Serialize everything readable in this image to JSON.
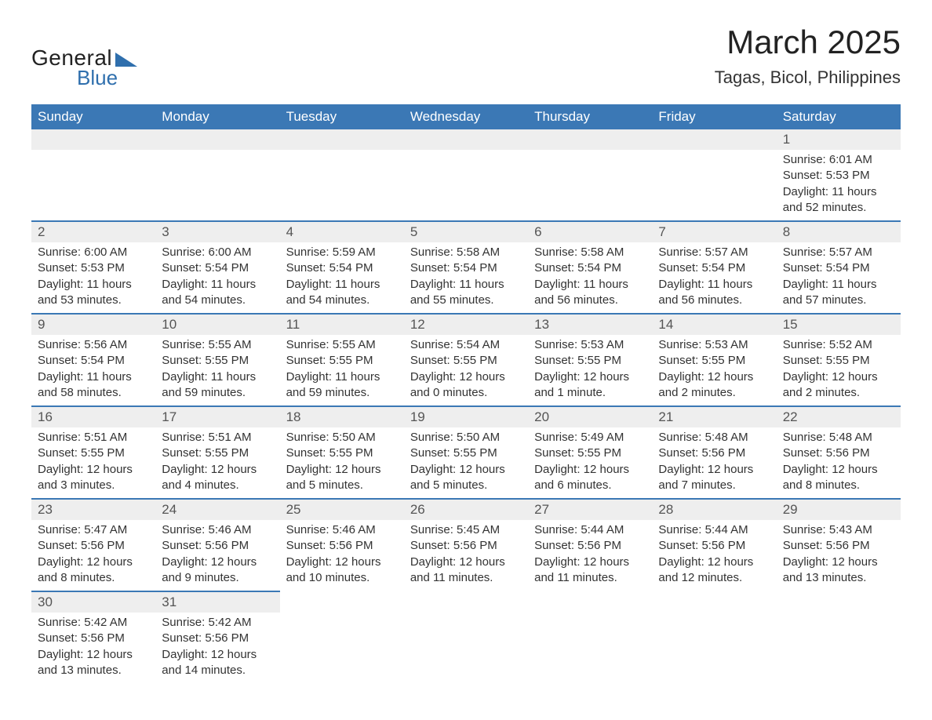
{
  "logo": {
    "text1": "General",
    "text2": "Blue",
    "text_color": "#222222",
    "accent_color": "#2f6fad"
  },
  "title": "March 2025",
  "location": "Tagas, Bicol, Philippines",
  "styling": {
    "header_bg": "#3b78b5",
    "header_text": "#ffffff",
    "daynum_bg": "#eeeeee",
    "row_divider": "#3b78b5",
    "body_text": "#333333",
    "title_fontsize": 42,
    "location_fontsize": 22,
    "th_fontsize": 17,
    "cell_fontsize": 15
  },
  "weekdays": [
    "Sunday",
    "Monday",
    "Tuesday",
    "Wednesday",
    "Thursday",
    "Friday",
    "Saturday"
  ],
  "weeks": [
    [
      null,
      null,
      null,
      null,
      null,
      null,
      {
        "n": "1",
        "sr": "Sunrise: 6:01 AM",
        "ss": "Sunset: 5:53 PM",
        "dl": "Daylight: 11 hours and 52 minutes."
      }
    ],
    [
      {
        "n": "2",
        "sr": "Sunrise: 6:00 AM",
        "ss": "Sunset: 5:53 PM",
        "dl": "Daylight: 11 hours and 53 minutes."
      },
      {
        "n": "3",
        "sr": "Sunrise: 6:00 AM",
        "ss": "Sunset: 5:54 PM",
        "dl": "Daylight: 11 hours and 54 minutes."
      },
      {
        "n": "4",
        "sr": "Sunrise: 5:59 AM",
        "ss": "Sunset: 5:54 PM",
        "dl": "Daylight: 11 hours and 54 minutes."
      },
      {
        "n": "5",
        "sr": "Sunrise: 5:58 AM",
        "ss": "Sunset: 5:54 PM",
        "dl": "Daylight: 11 hours and 55 minutes."
      },
      {
        "n": "6",
        "sr": "Sunrise: 5:58 AM",
        "ss": "Sunset: 5:54 PM",
        "dl": "Daylight: 11 hours and 56 minutes."
      },
      {
        "n": "7",
        "sr": "Sunrise: 5:57 AM",
        "ss": "Sunset: 5:54 PM",
        "dl": "Daylight: 11 hours and 56 minutes."
      },
      {
        "n": "8",
        "sr": "Sunrise: 5:57 AM",
        "ss": "Sunset: 5:54 PM",
        "dl": "Daylight: 11 hours and 57 minutes."
      }
    ],
    [
      {
        "n": "9",
        "sr": "Sunrise: 5:56 AM",
        "ss": "Sunset: 5:54 PM",
        "dl": "Daylight: 11 hours and 58 minutes."
      },
      {
        "n": "10",
        "sr": "Sunrise: 5:55 AM",
        "ss": "Sunset: 5:55 PM",
        "dl": "Daylight: 11 hours and 59 minutes."
      },
      {
        "n": "11",
        "sr": "Sunrise: 5:55 AM",
        "ss": "Sunset: 5:55 PM",
        "dl": "Daylight: 11 hours and 59 minutes."
      },
      {
        "n": "12",
        "sr": "Sunrise: 5:54 AM",
        "ss": "Sunset: 5:55 PM",
        "dl": "Daylight: 12 hours and 0 minutes."
      },
      {
        "n": "13",
        "sr": "Sunrise: 5:53 AM",
        "ss": "Sunset: 5:55 PM",
        "dl": "Daylight: 12 hours and 1 minute."
      },
      {
        "n": "14",
        "sr": "Sunrise: 5:53 AM",
        "ss": "Sunset: 5:55 PM",
        "dl": "Daylight: 12 hours and 2 minutes."
      },
      {
        "n": "15",
        "sr": "Sunrise: 5:52 AM",
        "ss": "Sunset: 5:55 PM",
        "dl": "Daylight: 12 hours and 2 minutes."
      }
    ],
    [
      {
        "n": "16",
        "sr": "Sunrise: 5:51 AM",
        "ss": "Sunset: 5:55 PM",
        "dl": "Daylight: 12 hours and 3 minutes."
      },
      {
        "n": "17",
        "sr": "Sunrise: 5:51 AM",
        "ss": "Sunset: 5:55 PM",
        "dl": "Daylight: 12 hours and 4 minutes."
      },
      {
        "n": "18",
        "sr": "Sunrise: 5:50 AM",
        "ss": "Sunset: 5:55 PM",
        "dl": "Daylight: 12 hours and 5 minutes."
      },
      {
        "n": "19",
        "sr": "Sunrise: 5:50 AM",
        "ss": "Sunset: 5:55 PM",
        "dl": "Daylight: 12 hours and 5 minutes."
      },
      {
        "n": "20",
        "sr": "Sunrise: 5:49 AM",
        "ss": "Sunset: 5:55 PM",
        "dl": "Daylight: 12 hours and 6 minutes."
      },
      {
        "n": "21",
        "sr": "Sunrise: 5:48 AM",
        "ss": "Sunset: 5:56 PM",
        "dl": "Daylight: 12 hours and 7 minutes."
      },
      {
        "n": "22",
        "sr": "Sunrise: 5:48 AM",
        "ss": "Sunset: 5:56 PM",
        "dl": "Daylight: 12 hours and 8 minutes."
      }
    ],
    [
      {
        "n": "23",
        "sr": "Sunrise: 5:47 AM",
        "ss": "Sunset: 5:56 PM",
        "dl": "Daylight: 12 hours and 8 minutes."
      },
      {
        "n": "24",
        "sr": "Sunrise: 5:46 AM",
        "ss": "Sunset: 5:56 PM",
        "dl": "Daylight: 12 hours and 9 minutes."
      },
      {
        "n": "25",
        "sr": "Sunrise: 5:46 AM",
        "ss": "Sunset: 5:56 PM",
        "dl": "Daylight: 12 hours and 10 minutes."
      },
      {
        "n": "26",
        "sr": "Sunrise: 5:45 AM",
        "ss": "Sunset: 5:56 PM",
        "dl": "Daylight: 12 hours and 11 minutes."
      },
      {
        "n": "27",
        "sr": "Sunrise: 5:44 AM",
        "ss": "Sunset: 5:56 PM",
        "dl": "Daylight: 12 hours and 11 minutes."
      },
      {
        "n": "28",
        "sr": "Sunrise: 5:44 AM",
        "ss": "Sunset: 5:56 PM",
        "dl": "Daylight: 12 hours and 12 minutes."
      },
      {
        "n": "29",
        "sr": "Sunrise: 5:43 AM",
        "ss": "Sunset: 5:56 PM",
        "dl": "Daylight: 12 hours and 13 minutes."
      }
    ],
    [
      {
        "n": "30",
        "sr": "Sunrise: 5:42 AM",
        "ss": "Sunset: 5:56 PM",
        "dl": "Daylight: 12 hours and 13 minutes."
      },
      {
        "n": "31",
        "sr": "Sunrise: 5:42 AM",
        "ss": "Sunset: 5:56 PM",
        "dl": "Daylight: 12 hours and 14 minutes."
      },
      null,
      null,
      null,
      null,
      null
    ]
  ]
}
